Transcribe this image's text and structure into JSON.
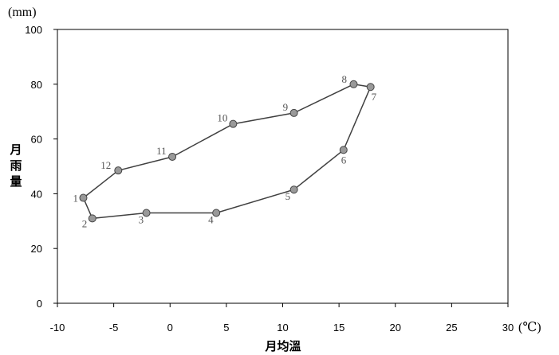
{
  "chart_data": {
    "type": "scatter",
    "xlabel": "月均溫",
    "ylabel": "月雨量",
    "x_unit": "(℃)",
    "y_unit": "(mm)",
    "xlim": [
      -10,
      30
    ],
    "ylim": [
      0,
      100
    ],
    "xticks": [
      "-10",
      "-5",
      "0",
      "5",
      "10",
      "15",
      "20",
      "25",
      "30"
    ],
    "yticks": [
      "0",
      "20",
      "40",
      "60",
      "80",
      "100"
    ],
    "grid": false,
    "closed_loop": true,
    "marker_color": "#999999",
    "line_color": "#404040",
    "points": [
      {
        "label": "1",
        "x": -7.7,
        "y": 38.5
      },
      {
        "label": "2",
        "x": -6.9,
        "y": 31
      },
      {
        "label": "3",
        "x": -2.1,
        "y": 33
      },
      {
        "label": "4",
        "x": 4.1,
        "y": 33
      },
      {
        "label": "5",
        "x": 11.0,
        "y": 41.5
      },
      {
        "label": "6",
        "x": 15.4,
        "y": 56
      },
      {
        "label": "7",
        "x": 17.8,
        "y": 79
      },
      {
        "label": "8",
        "x": 16.3,
        "y": 80
      },
      {
        "label": "9",
        "x": 11.0,
        "y": 69.5
      },
      {
        "label": "10",
        "x": 5.6,
        "y": 65.5
      },
      {
        "label": "11",
        "x": 0.2,
        "y": 53.5
      },
      {
        "label": "12",
        "x": -4.6,
        "y": 48.5
      }
    ]
  }
}
